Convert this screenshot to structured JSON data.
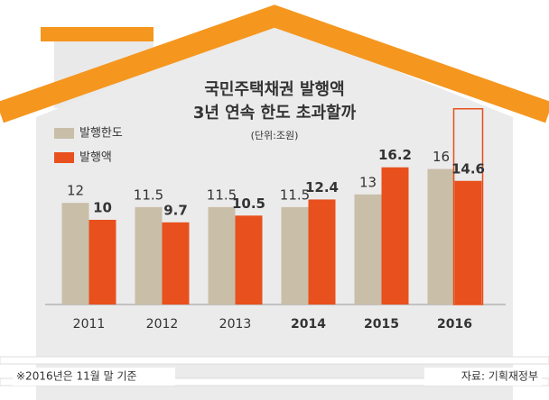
{
  "chart_data": {
    "type": "bar",
    "title": "국민주택채권 발행액",
    "subtitle": "3년 연속 한도 초과할까",
    "unit": "(단위:조원)",
    "categories": [
      "2011",
      "2012",
      "2013",
      "2014",
      "2015",
      "2016"
    ],
    "series": [
      {
        "name": "발행한도",
        "color": "#c9bea8",
        "values": [
          12,
          11.5,
          11.5,
          11.5,
          13,
          16
        ]
      },
      {
        "name": "발행액",
        "color": "#e8501d",
        "values": [
          10,
          9.7,
          10.5,
          12.4,
          16.2,
          14.6
        ]
      }
    ],
    "footnote": "※2016년은 11월 말 기준",
    "source": "자료: 기획재정부"
  }
}
